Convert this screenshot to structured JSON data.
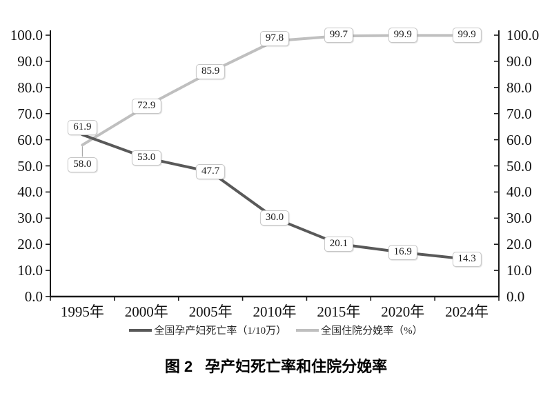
{
  "figure": {
    "caption_label": "图 2",
    "caption_text": "孕产妇死亡率和住院分娩率"
  },
  "chart_data": {
    "type": "line",
    "title": "图 2　孕产妇死亡率和住院分娩率",
    "categories": [
      "1995年",
      "2000年",
      "2005年",
      "2010年",
      "2015年",
      "2020年",
      "2024年"
    ],
    "series": [
      {
        "name": "全国孕产妇死亡率（1/10万）",
        "color": "#595959",
        "values": [
          61.9,
          53.0,
          47.7,
          30.0,
          20.1,
          16.9,
          14.3
        ],
        "point_labels": [
          "61.9",
          "53.0",
          "47.7",
          "30.0",
          "20.1",
          "16.9",
          "14.3"
        ],
        "label_dy": [
          -10,
          0,
          0,
          0,
          0,
          0,
          0
        ],
        "leader_indexes": []
      },
      {
        "name": "全国住院分娩率（%）",
        "color": "#bfbfbf",
        "values": [
          58.0,
          72.9,
          85.9,
          97.8,
          99.7,
          99.9,
          99.9
        ],
        "point_labels": [
          "58.0",
          "72.9",
          "85.9",
          "97.8",
          "99.7",
          "99.9",
          "99.9"
        ],
        "label_dy": [
          29,
          0,
          0,
          -3,
          -1,
          0,
          0
        ],
        "leader_indexes": [
          0
        ]
      }
    ],
    "y_axis": {
      "min": 0,
      "max": 100,
      "step": 10,
      "tick_labels": [
        "0.0",
        "10.0",
        "20.0",
        "30.0",
        "40.0",
        "50.0",
        "60.0",
        "70.0",
        "80.0",
        "90.0",
        "100.0"
      ],
      "sides": [
        "left",
        "right"
      ]
    },
    "x_axis": {
      "tick_position": "between-categories"
    },
    "grid": false,
    "legend_position": "bottom",
    "point_label_boxes": true,
    "colors": {
      "axis": "#1a1a1a",
      "label_box_border": "#c6c6c6",
      "label_box_bg": "#ffffff",
      "leader_line": "#aaaaaa"
    }
  }
}
